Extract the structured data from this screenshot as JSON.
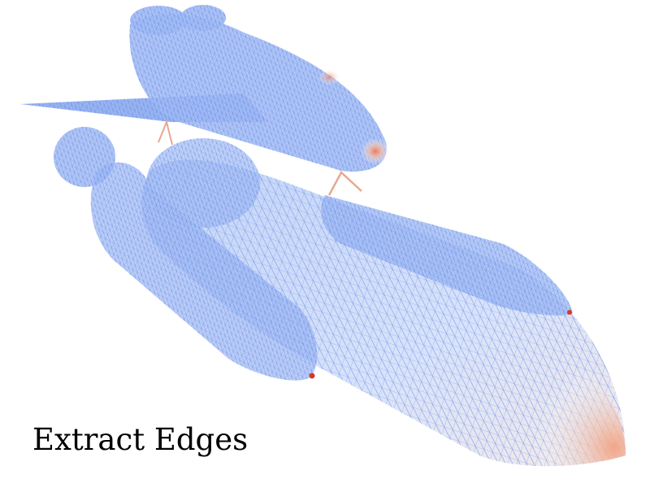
{
  "caption": {
    "text": "Extract Edges"
  },
  "render": {
    "mesh_color": "#6f93ea",
    "mesh_dark": "#4a6fd8",
    "fill_light": "#c8d6f7",
    "highlight": "#f3a383",
    "hot_spot": "#d23b2a",
    "background": "#ffffff"
  }
}
